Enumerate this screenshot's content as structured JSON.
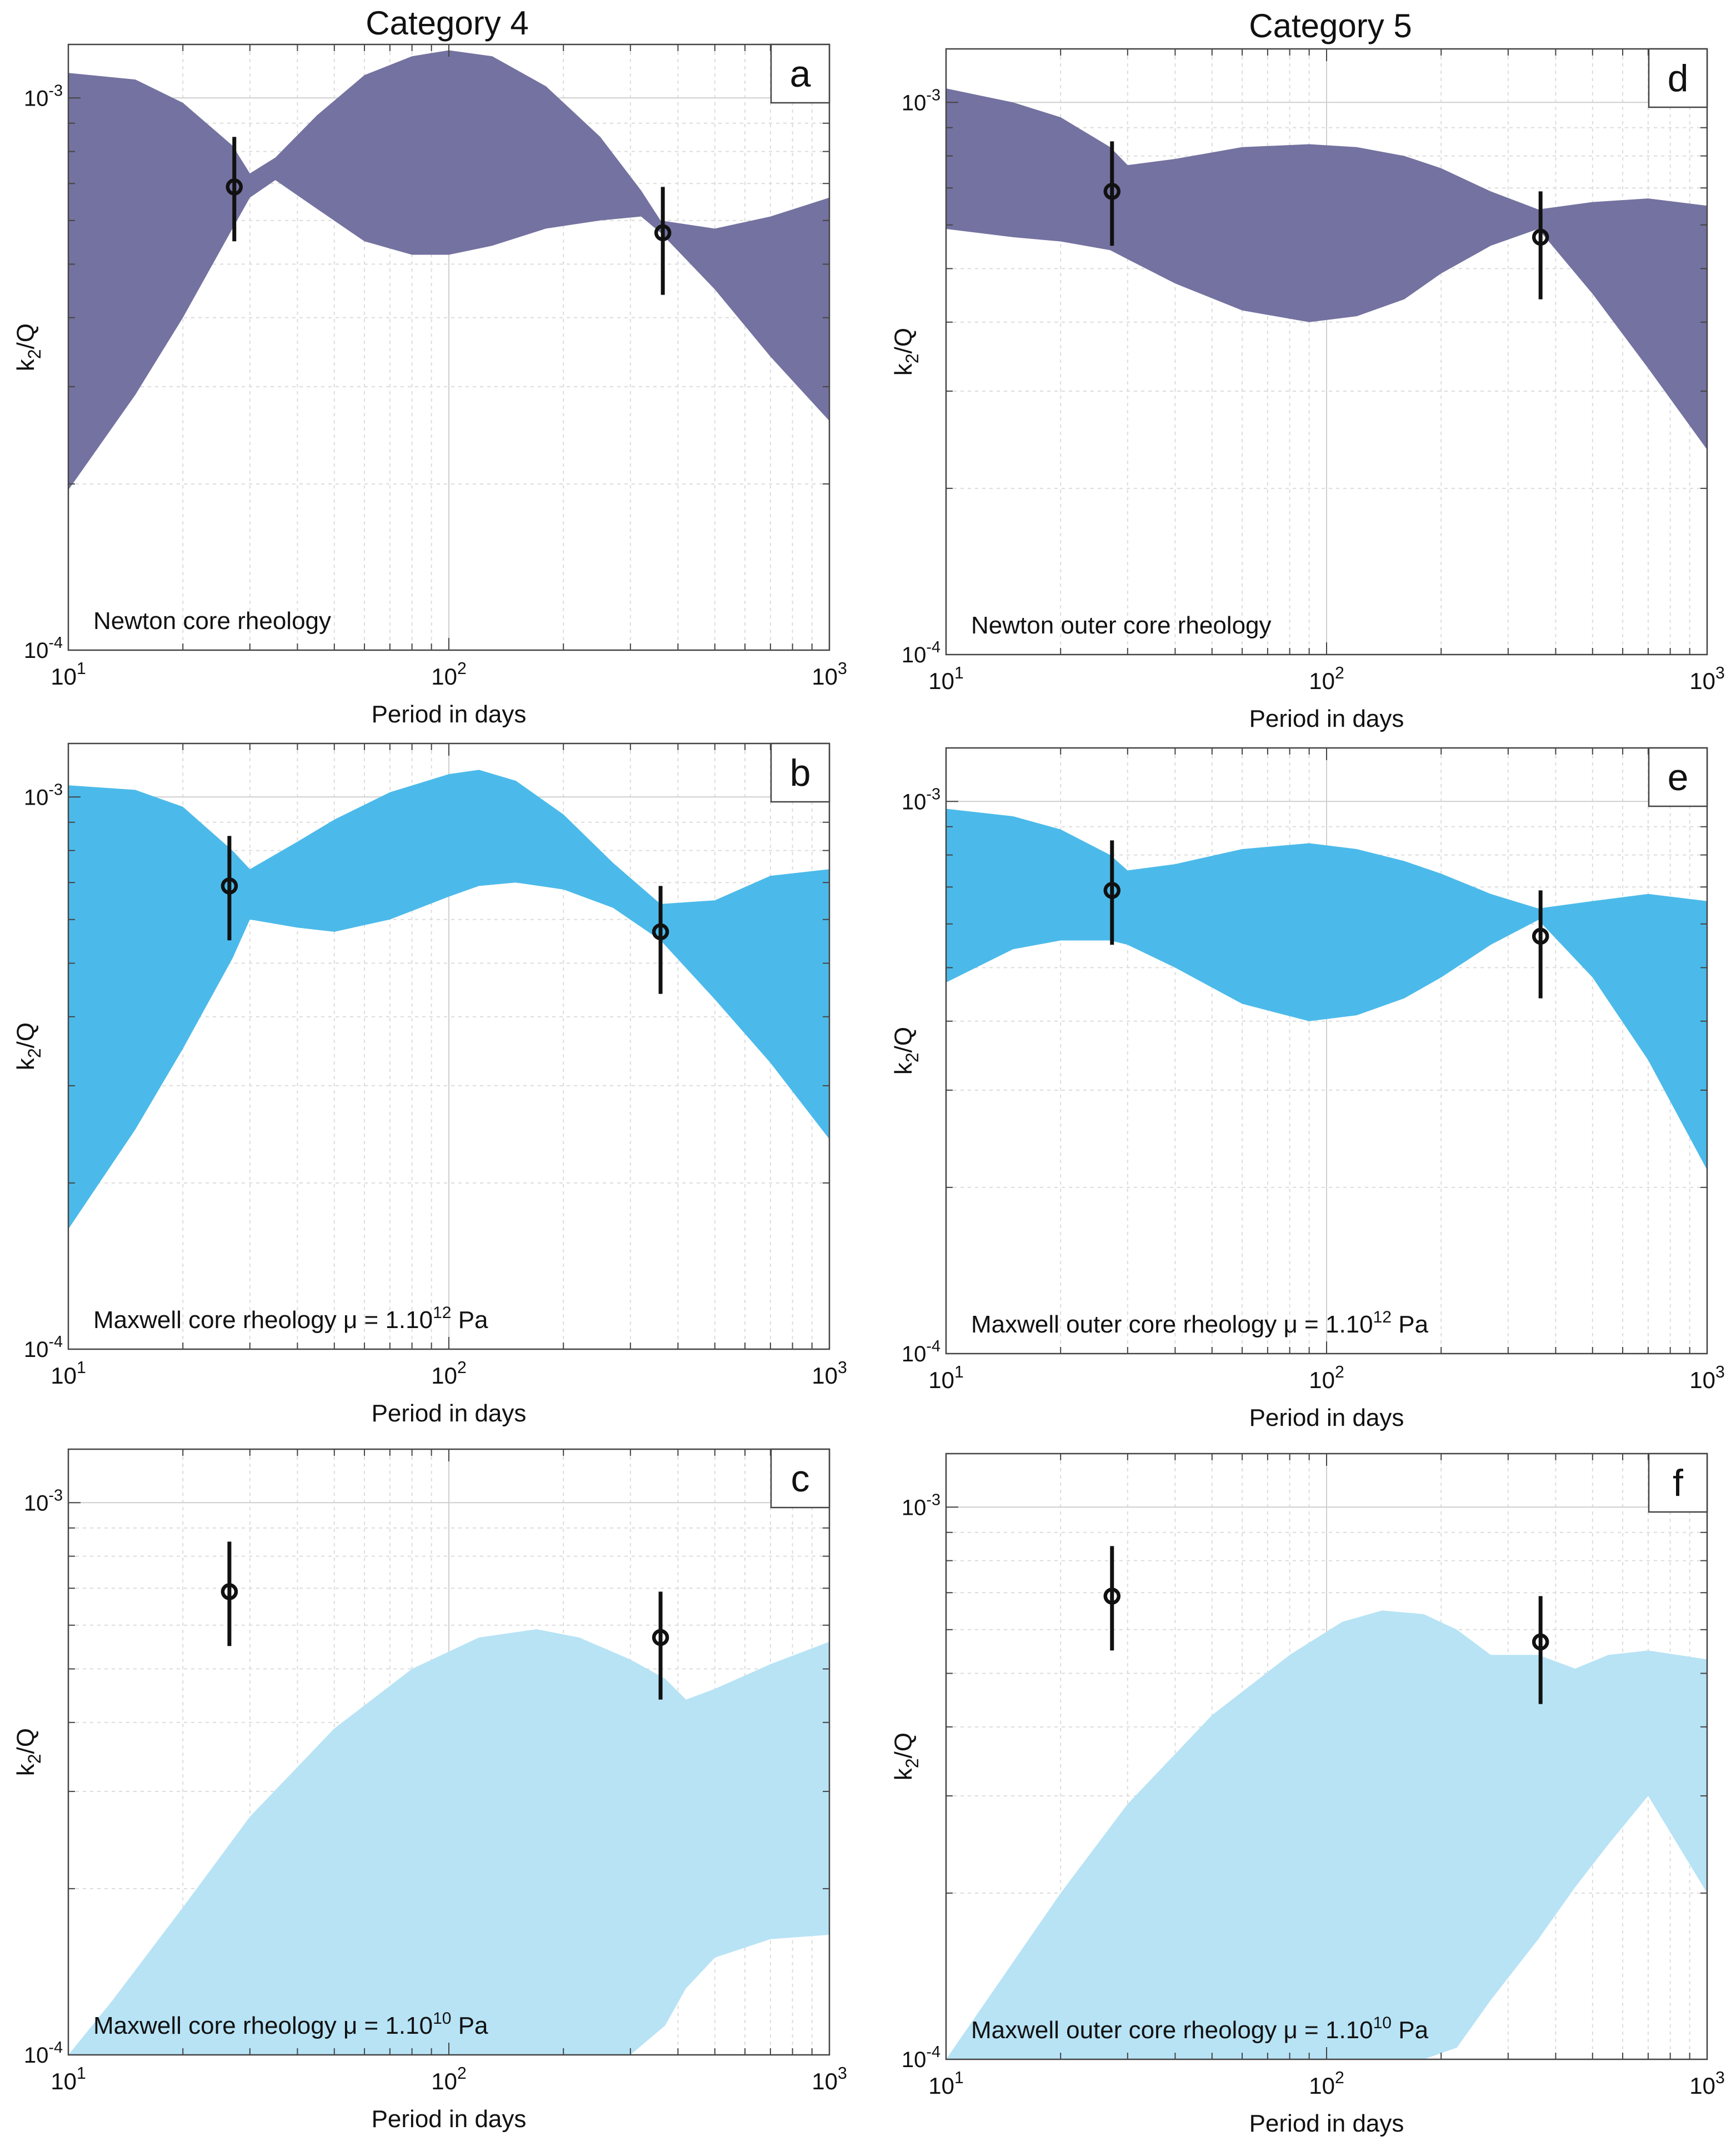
{
  "column_titles": [
    "Category 4",
    "Category 5"
  ],
  "colors": {
    "newton": "#7472a0",
    "maxwell_1e12": "#4bbaea",
    "maxwell_1e10": "#b7e3f5",
    "marker": "#111111",
    "grid_major": "#cfcfcf",
    "grid_minor": "#dcdcdc"
  },
  "chart_data": [
    {
      "panel": "a",
      "column": "Category 4",
      "type": "area",
      "annotation": "Newton core rheology",
      "xlabel": "Period in days",
      "ylabel": "k2/Q",
      "xscale": "log",
      "yscale": "log",
      "xlim": [
        10,
        1000
      ],
      "ylim": [
        0.0001,
        0.00125
      ],
      "xticks": [
        "10^1",
        "10^2",
        "10^3"
      ],
      "yticks": [
        "10^-3",
        "10^-4"
      ],
      "grid": true,
      "band": {
        "x": [
          10,
          15,
          20,
          27,
          30,
          35,
          45,
          60,
          80,
          100,
          130,
          180,
          250,
          320,
          360,
          500,
          700,
          1000
        ],
        "upper": [
          0.00111,
          0.00108,
          0.00098,
          0.00082,
          0.00073,
          0.00078,
          0.00093,
          0.0011,
          0.00119,
          0.00122,
          0.00119,
          0.00105,
          0.00085,
          0.00068,
          0.0006,
          0.00058,
          0.00061,
          0.00066
        ],
        "lower": [
          0.000195,
          0.00029,
          0.0004,
          0.00058,
          0.00066,
          0.00071,
          0.00063,
          0.00055,
          0.00052,
          0.00052,
          0.00054,
          0.00058,
          0.0006,
          0.00061,
          0.00057,
          0.00045,
          0.00034,
          0.00026
        ]
      },
      "points": [
        {
          "x": 27.3,
          "y": 0.00069,
          "y_low": 0.00055,
          "y_high": 0.00085
        },
        {
          "x": 365,
          "y": 0.00057,
          "y_low": 0.00044,
          "y_high": 0.00069
        }
      ]
    },
    {
      "panel": "b",
      "column": "Category 4",
      "type": "area",
      "annotation": "Maxwell core rheology  μ = 1.10",
      "annotation_exp": "12",
      "annotation_unit": " Pa",
      "xlabel": "Period in days",
      "ylabel": "k2/Q",
      "xscale": "log",
      "yscale": "log",
      "xlim": [
        10,
        1000
      ],
      "ylim": [
        0.0001,
        0.00125
      ],
      "xticks": [
        "10^1",
        "10^2",
        "10^3"
      ],
      "yticks": [
        "10^-3",
        "10^-4"
      ],
      "grid": true,
      "band": {
        "x": [
          10,
          15,
          20,
          27,
          30,
          40,
          50,
          70,
          100,
          120,
          150,
          200,
          270,
          360,
          500,
          700,
          1000
        ],
        "upper": [
          0.00105,
          0.00103,
          0.00096,
          0.0008,
          0.00074,
          0.00083,
          0.00091,
          0.00102,
          0.0011,
          0.00112,
          0.00107,
          0.00093,
          0.00076,
          0.00064,
          0.00065,
          0.00072,
          0.00074
        ],
        "lower": [
          0.000165,
          0.00025,
          0.00035,
          0.00051,
          0.0006,
          0.00058,
          0.00057,
          0.0006,
          0.00066,
          0.00069,
          0.0007,
          0.00068,
          0.00063,
          0.00055,
          0.00043,
          0.00033,
          0.00024
        ]
      },
      "points": [
        {
          "x": 26.5,
          "y": 0.00069,
          "y_low": 0.00055,
          "y_high": 0.00085
        },
        {
          "x": 360,
          "y": 0.00057,
          "y_low": 0.00044,
          "y_high": 0.00069
        }
      ]
    },
    {
      "panel": "c",
      "column": "Category 4",
      "type": "area",
      "annotation": "Maxwell core rheology  μ = 1.10",
      "annotation_exp": "10",
      "annotation_unit": " Pa",
      "xlabel": "Period in days",
      "ylabel": "k2/Q",
      "xscale": "log",
      "yscale": "log",
      "xlim": [
        10,
        1000
      ],
      "ylim": [
        0.0001,
        0.00125
      ],
      "xticks": [
        "10^1",
        "10^2",
        "10^3"
      ],
      "yticks": [
        "10^-3",
        "10^-4"
      ],
      "grid": true,
      "band": {
        "x": [
          10,
          13,
          20,
          30,
          50,
          80,
          120,
          170,
          220,
          300,
          370,
          420,
          500,
          700,
          1000
        ],
        "upper": [
          0.0001,
          0.000125,
          0.000185,
          0.00027,
          0.00039,
          0.0005,
          0.00057,
          0.00059,
          0.00057,
          0.00052,
          0.00048,
          0.00044,
          0.00046,
          0.00051,
          0.00056
        ],
        "lower": [
          0.0001,
          0.0001,
          0.0001,
          0.0001,
          0.0001,
          0.0001,
          0.0001,
          0.0001,
          0.0001,
          0.0001,
          0.000113,
          0.000132,
          0.00015,
          0.000162,
          0.000165
        ]
      },
      "points": [
        {
          "x": 26.5,
          "y": 0.00069,
          "y_low": 0.00055,
          "y_high": 0.00085
        },
        {
          "x": 360,
          "y": 0.00057,
          "y_low": 0.00044,
          "y_high": 0.00069
        }
      ]
    },
    {
      "panel": "d",
      "column": "Category 5",
      "type": "area",
      "annotation": "Newton outer core rheology",
      "xlabel": "Period in days",
      "ylabel": "k2/Q",
      "xscale": "log",
      "yscale": "log",
      "xlim": [
        10,
        1000
      ],
      "ylim": [
        0.0001,
        0.00125
      ],
      "xticks": [
        "10^1",
        "10^2",
        "10^3"
      ],
      "yticks": [
        "10^-3",
        "10^-4"
      ],
      "grid": true,
      "band": {
        "x": [
          10,
          15,
          20,
          27,
          30,
          40,
          60,
          90,
          120,
          160,
          200,
          270,
          360,
          500,
          700,
          1000
        ],
        "upper": [
          0.00106,
          0.001,
          0.00094,
          0.00083,
          0.00077,
          0.00079,
          0.00083,
          0.00084,
          0.00083,
          0.0008,
          0.00076,
          0.00069,
          0.00064,
          0.00066,
          0.00067,
          0.00065
        ],
        "lower": [
          0.00059,
          0.00057,
          0.00056,
          0.00054,
          0.00052,
          0.00047,
          0.00042,
          0.0004,
          0.00041,
          0.00044,
          0.00049,
          0.00055,
          0.00059,
          0.00045,
          0.00033,
          0.000235
        ]
      },
      "points": [
        {
          "x": 27.3,
          "y": 0.00069,
          "y_low": 0.00055,
          "y_high": 0.00085
        },
        {
          "x": 365,
          "y": 0.00057,
          "y_low": 0.00044,
          "y_high": 0.00069
        }
      ]
    },
    {
      "panel": "e",
      "column": "Category 5",
      "type": "area",
      "annotation": "Maxwell outer core rheology  μ = 1.10",
      "annotation_exp": "12",
      "annotation_unit": " Pa",
      "xlabel": "Period in days",
      "ylabel": "k2/Q",
      "xscale": "log",
      "yscale": "log",
      "xlim": [
        10,
        1000
      ],
      "ylim": [
        0.0001,
        0.00125
      ],
      "xticks": [
        "10^1",
        "10^2",
        "10^3"
      ],
      "yticks": [
        "10^-3",
        "10^-4"
      ],
      "grid": true,
      "band": {
        "x": [
          10,
          15,
          20,
          27,
          30,
          40,
          60,
          90,
          120,
          160,
          200,
          270,
          360,
          500,
          700,
          1000
        ],
        "upper": [
          0.00097,
          0.00094,
          0.00089,
          0.0008,
          0.00075,
          0.00077,
          0.00082,
          0.00084,
          0.00082,
          0.00078,
          0.00074,
          0.00068,
          0.00064,
          0.00066,
          0.00068,
          0.00066
        ],
        "lower": [
          0.00047,
          0.00054,
          0.00056,
          0.00056,
          0.00055,
          0.0005,
          0.00043,
          0.0004,
          0.00041,
          0.00044,
          0.00048,
          0.00055,
          0.00061,
          0.00048,
          0.00034,
          0.000215
        ]
      },
      "points": [
        {
          "x": 27.3,
          "y": 0.00069,
          "y_low": 0.00055,
          "y_high": 0.00085
        },
        {
          "x": 365,
          "y": 0.00057,
          "y_low": 0.00044,
          "y_high": 0.00069
        }
      ]
    },
    {
      "panel": "f",
      "column": "Category 5",
      "type": "area",
      "annotation": "Maxwell outer core rheology  μ = 1.10",
      "annotation_exp": "10",
      "annotation_unit": " Pa",
      "xlabel": "Period in days",
      "ylabel": "k2/Q",
      "xscale": "log",
      "yscale": "log",
      "xlim": [
        10,
        1000
      ],
      "ylim": [
        0.0001,
        0.00125
      ],
      "xticks": [
        "10^1",
        "10^2",
        "10^3"
      ],
      "yticks": [
        "10^-3",
        "10^-4"
      ],
      "grid": true,
      "band": {
        "x": [
          10,
          13,
          20,
          30,
          50,
          80,
          110,
          140,
          180,
          220,
          270,
          360,
          450,
          550,
          700,
          1000
        ],
        "upper": [
          0.0001,
          0.00013,
          0.0002,
          0.00029,
          0.00042,
          0.00054,
          0.00062,
          0.00065,
          0.00064,
          0.0006,
          0.00054,
          0.00054,
          0.00051,
          0.00054,
          0.00055,
          0.00053
        ],
        "lower": [
          0.0001,
          0.0001,
          0.0001,
          0.0001,
          0.0001,
          0.0001,
          0.0001,
          0.0001,
          0.0001,
          0.000105,
          0.000128,
          0.000165,
          0.000205,
          0.000245,
          0.0003,
          0.0002
        ]
      },
      "points": [
        {
          "x": 27.3,
          "y": 0.00069,
          "y_low": 0.00055,
          "y_high": 0.00085
        },
        {
          "x": 365,
          "y": 0.00057,
          "y_low": 0.00044,
          "y_high": 0.00069
        }
      ]
    }
  ]
}
